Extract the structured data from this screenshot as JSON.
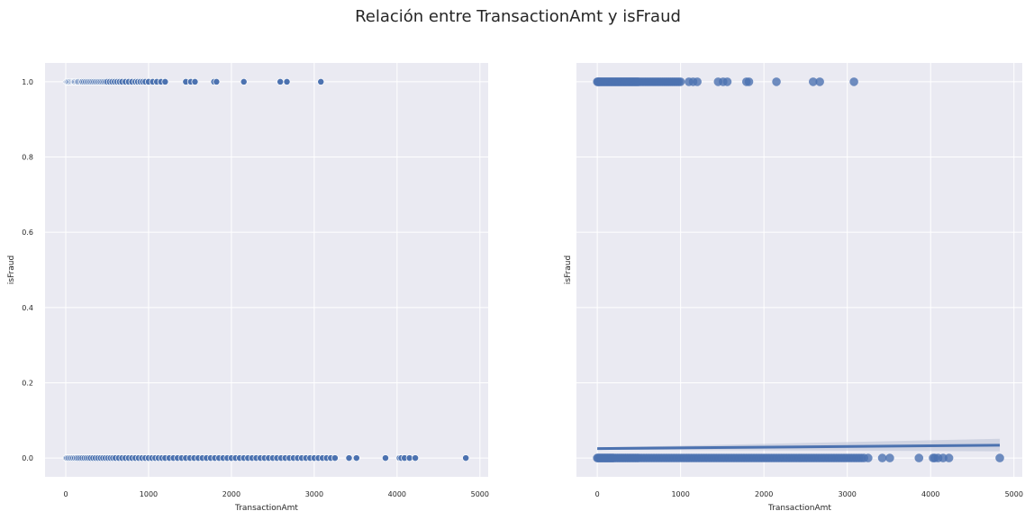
{
  "figure": {
    "title": "Relación entre TransactionAmt y isFraud"
  },
  "colors": {
    "background": "#eaeaf2",
    "grid": "#ffffff",
    "series": "#4c72b0",
    "band": "#b8c0d6"
  },
  "chart_data": [
    {
      "type": "scatter",
      "title": "",
      "xlabel": "TransactionAmt",
      "ylabel": "isFraud",
      "xlim": [
        -250,
        5100
      ],
      "ylim": [
        -0.05,
        1.05
      ],
      "xticks": [
        "0",
        "1000",
        "2000",
        "3000",
        "4000",
        "5000"
      ],
      "yticks": [
        "0.0",
        "0.2",
        "0.4",
        "0.6",
        "0.8",
        "1.0"
      ],
      "grid": true,
      "series": [
        {
          "y": 1,
          "x": [
            10,
            20,
            30,
            45,
            60,
            75,
            90,
            100,
            110,
            125,
            140,
            150,
            170,
            190,
            200,
            220,
            240,
            260,
            280,
            300,
            320,
            340,
            360,
            380,
            400,
            420,
            440,
            460,
            480,
            500,
            530,
            560,
            590,
            620,
            650,
            680,
            720,
            760,
            800,
            840,
            870,
            900,
            930,
            960,
            1000,
            1050,
            1100,
            1150,
            1200,
            1450,
            1510,
            1560,
            1790,
            1820,
            2150,
            2590,
            2670,
            3080
          ]
        },
        {
          "y": 0,
          "x": [
            5,
            15,
            30,
            50,
            70,
            90,
            110,
            130,
            150,
            175,
            200,
            225,
            250,
            275,
            300,
            330,
            360,
            390,
            420,
            450,
            480,
            510,
            540,
            570,
            600,
            640,
            680,
            720,
            760,
            800,
            840,
            880,
            920,
            960,
            1000,
            1040,
            1080,
            1120,
            1160,
            1200,
            1250,
            1300,
            1350,
            1400,
            1450,
            1500,
            1550,
            1600,
            1650,
            1700,
            1750,
            1800,
            1850,
            1900,
            1950,
            2000,
            2050,
            2100,
            2150,
            2200,
            2250,
            2300,
            2350,
            2400,
            2450,
            2500,
            2550,
            2600,
            2650,
            2700,
            2750,
            2800,
            2850,
            2900,
            2950,
            3000,
            3050,
            3100,
            3150,
            3200,
            3250,
            3420,
            3510,
            3860,
            4030,
            4050,
            4090,
            4150,
            4220,
            4830
          ]
        }
      ]
    },
    {
      "type": "scatter",
      "title": "",
      "xlabel": "TransactionAmt",
      "ylabel": "isFraud",
      "xlim": [
        -250,
        5100
      ],
      "ylim": [
        -0.05,
        1.05
      ],
      "xticks": [
        "0",
        "1000",
        "2000",
        "3000",
        "4000",
        "5000"
      ],
      "grid": true,
      "series": [
        {
          "y": 1,
          "x": [
            0,
            8,
            15,
            22,
            30,
            40,
            50,
            60,
            70,
            80,
            90,
            100,
            110,
            120,
            130,
            140,
            150,
            160,
            170,
            180,
            190,
            200,
            210,
            220,
            230,
            240,
            250,
            260,
            270,
            280,
            290,
            300,
            310,
            320,
            330,
            340,
            350,
            360,
            370,
            380,
            390,
            400,
            410,
            420,
            430,
            440,
            450,
            460,
            470,
            480,
            490,
            500,
            520,
            540,
            560,
            580,
            600,
            620,
            640,
            660,
            680,
            700,
            720,
            740,
            760,
            780,
            800,
            820,
            840,
            860,
            880,
            900,
            920,
            940,
            960,
            980,
            1000,
            1100,
            1150,
            1200,
            1450,
            1510,
            1560,
            1790,
            1820,
            2150,
            2590,
            2670,
            3080
          ]
        },
        {
          "y": 0,
          "x": [
            0,
            10,
            20,
            30,
            40,
            50,
            60,
            70,
            80,
            90,
            100,
            110,
            120,
            130,
            140,
            150,
            160,
            170,
            180,
            190,
            200,
            220,
            240,
            260,
            280,
            300,
            320,
            340,
            360,
            380,
            400,
            420,
            440,
            460,
            480,
            500,
            530,
            560,
            590,
            620,
            650,
            680,
            710,
            740,
            770,
            800,
            830,
            860,
            890,
            920,
            950,
            980,
            1010,
            1040,
            1070,
            1100,
            1130,
            1160,
            1190,
            1220,
            1250,
            1280,
            1310,
            1340,
            1370,
            1400,
            1430,
            1460,
            1490,
            1520,
            1550,
            1580,
            1610,
            1640,
            1670,
            1700,
            1730,
            1760,
            1790,
            1820,
            1850,
            1880,
            1910,
            1940,
            1970,
            2000,
            2030,
            2060,
            2090,
            2120,
            2150,
            2180,
            2210,
            2240,
            2270,
            2300,
            2330,
            2360,
            2390,
            2420,
            2450,
            2480,
            2510,
            2540,
            2570,
            2600,
            2630,
            2660,
            2690,
            2720,
            2750,
            2780,
            2810,
            2840,
            2870,
            2900,
            2930,
            2960,
            2990,
            3020,
            3050,
            3080,
            3110,
            3140,
            3170,
            3200,
            3250,
            3420,
            3510,
            3860,
            4030,
            4050,
            4090,
            4150,
            4220,
            4830
          ]
        }
      ],
      "regression": {
        "x": [
          0,
          4830
        ],
        "y": [
          0.025,
          0.034
        ],
        "ci_low": [
          0.022,
          0.018
        ],
        "ci_high": [
          0.028,
          0.051
        ]
      }
    }
  ]
}
